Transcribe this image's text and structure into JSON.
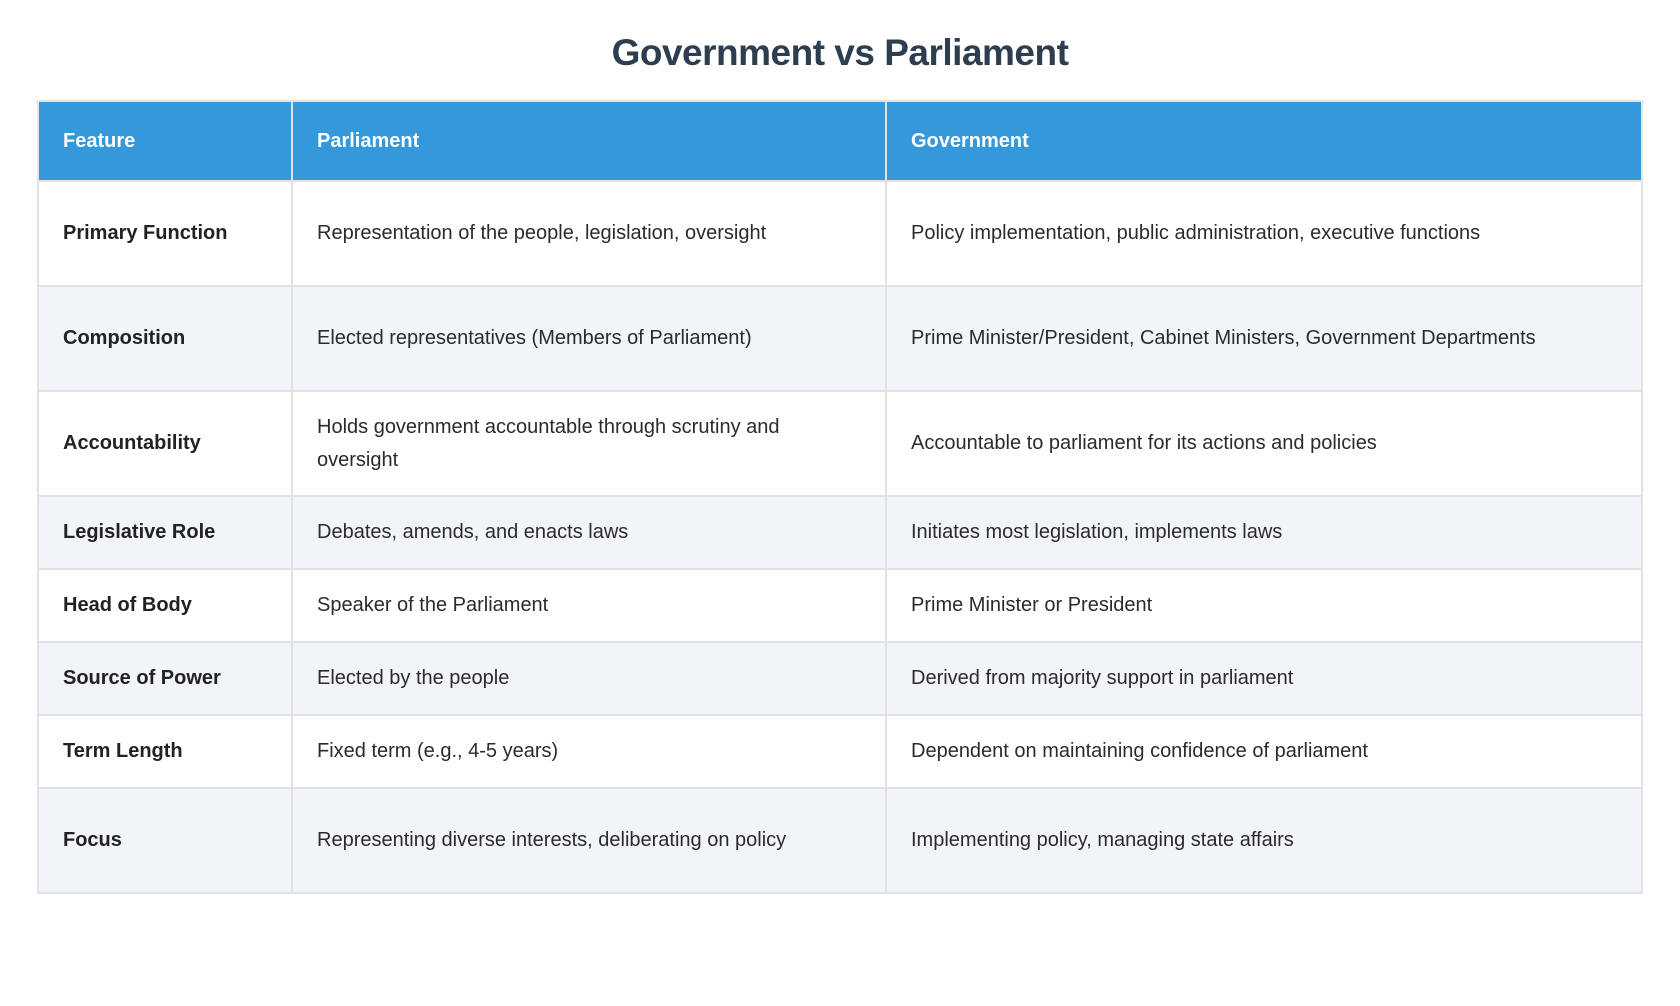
{
  "title": "Government vs Parliament",
  "table": {
    "headers": {
      "feature": "Feature",
      "parliament": "Parliament",
      "government": "Government"
    },
    "rows": [
      {
        "feature": "Primary Function",
        "parliament": "Representation of the people, legislation, oversight",
        "government": "Policy implementation, public administration, executive functions"
      },
      {
        "feature": "Composition",
        "parliament": "Elected representatives (Members of Parliament)",
        "government": "Prime Minister/President, Cabinet Ministers, Government Departments"
      },
      {
        "feature": "Accountability",
        "parliament": "Holds government accountable through scrutiny and oversight",
        "government": "Accountable to parliament for its actions and policies"
      },
      {
        "feature": "Legislative Role",
        "parliament": "Debates, amends, and enacts laws",
        "government": "Initiates most legislation, implements laws"
      },
      {
        "feature": "Head of Body",
        "parliament": "Speaker of the Parliament",
        "government": "Prime Minister or President"
      },
      {
        "feature": "Source of Power",
        "parliament": "Elected by the people",
        "government": "Derived from majority support in parliament"
      },
      {
        "feature": "Term Length",
        "parliament": "Fixed term (e.g., 4-5 years)",
        "government": "Dependent on maintaining confidence of parliament"
      },
      {
        "feature": "Focus",
        "parliament": "Representing diverse interests, deliberating on policy",
        "government": "Implementing policy, managing state affairs"
      }
    ]
  },
  "colors": {
    "header_bg": "#3498db",
    "header_text": "#ffffff",
    "title_text": "#2d3e50",
    "stripe_bg": "#f1f4f9",
    "row_bg": "#ffffff",
    "border": "#e2e2e2",
    "body_text": "#2b2b2b"
  }
}
